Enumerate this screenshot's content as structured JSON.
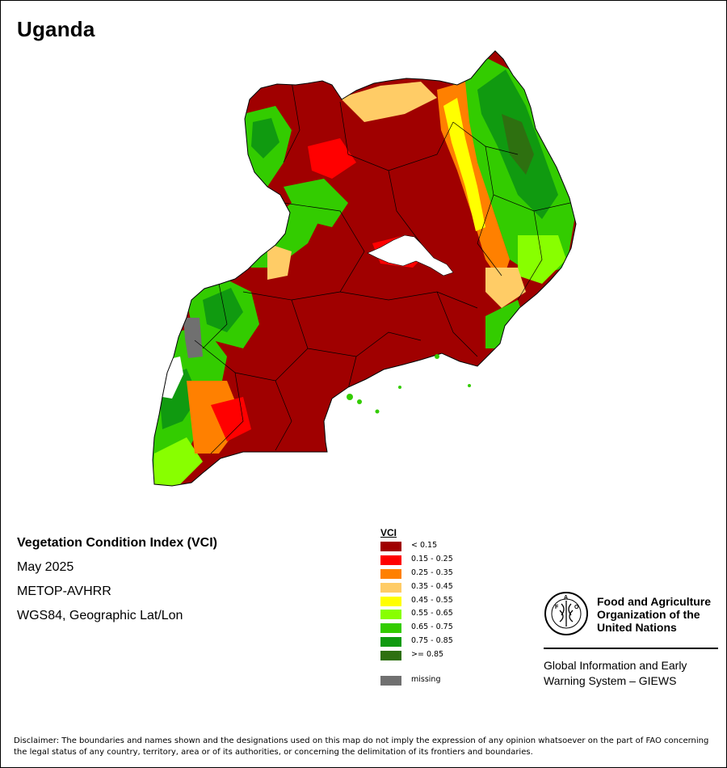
{
  "title": "Uganda",
  "info": {
    "index_name": "Vegetation Condition Index (VCI)",
    "period": "May 2025",
    "sensor": "METOP-AVHRR",
    "projection": "WGS84, Geographic Lat/Lon"
  },
  "legend": {
    "title": "VCI",
    "items": [
      {
        "label": "< 0.15",
        "color": "#a00000"
      },
      {
        "label": "0.15 - 0.25",
        "color": "#ff0000"
      },
      {
        "label": "0.25 - 0.35",
        "color": "#ff8000"
      },
      {
        "label": "0.35 - 0.45",
        "color": "#ffcc66"
      },
      {
        "label": "0.45 - 0.55",
        "color": "#ffff00"
      },
      {
        "label": "0.55 - 0.65",
        "color": "#88ff00"
      },
      {
        "label": "0.65 - 0.75",
        "color": "#33cc00"
      },
      {
        "label": "0.75 - 0.85",
        "color": "#109a10"
      },
      {
        "label": ">= 0.85",
        "color": "#2e7010"
      }
    ],
    "missing": {
      "label": "missing",
      "color": "#707070"
    }
  },
  "organization": {
    "logo_icon": "fao-logo-icon",
    "name_lines": [
      "Food and Agriculture",
      "Organization of the",
      "United Nations"
    ],
    "system_lines": [
      "Global Information and Early",
      "Warning System – GIEWS"
    ]
  },
  "disclaimer": "Disclaimer: The boundaries and names shown and the designations used on this map do not imply the expression of any opinion whatsoever on the part of FAO concerning the legal status of any country, territory, area or of its authorities, or concerning the delimitation of its frontiers and boundaries."
}
